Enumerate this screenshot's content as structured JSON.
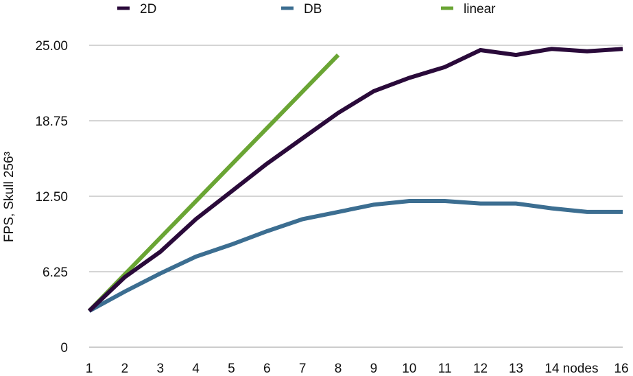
{
  "chart_data": {
    "type": "line",
    "ylabel": "FPS, Skull 256³",
    "xlabel": "",
    "x_ticks": [
      "1",
      "2",
      "3",
      "4",
      "5",
      "6",
      "7",
      "8",
      "9",
      "10",
      "11",
      "12",
      "13",
      "14 nodes",
      "16"
    ],
    "y_ticks": [
      "0",
      "6.25",
      "12.50",
      "18.75",
      "25.00"
    ],
    "ylim": [
      0,
      25
    ],
    "grid": true,
    "legend_position": "top",
    "series": [
      {
        "name": "2D",
        "color": "#2a0a3a",
        "x": [
          1,
          2,
          3,
          4,
          5,
          6,
          7,
          8,
          9,
          10,
          11,
          12,
          13,
          14,
          15,
          16
        ],
        "y": [
          3.0,
          5.8,
          7.9,
          10.6,
          12.9,
          15.2,
          17.3,
          19.4,
          21.2,
          22.3,
          23.2,
          24.6,
          24.2,
          24.7,
          24.5,
          24.7
        ]
      },
      {
        "name": "DB",
        "color": "#3c6e91",
        "x": [
          1,
          2,
          3,
          4,
          5,
          6,
          7,
          8,
          9,
          10,
          11,
          12,
          13,
          14,
          15,
          16
        ],
        "y": [
          3.0,
          4.6,
          6.1,
          7.5,
          8.5,
          9.6,
          10.6,
          11.2,
          11.8,
          12.1,
          12.1,
          11.9,
          11.9,
          11.5,
          11.2,
          11.2
        ]
      },
      {
        "name": "linear",
        "color": "#6aa534",
        "x": [
          1,
          8
        ],
        "y": [
          3.0,
          24.2
        ]
      }
    ]
  }
}
